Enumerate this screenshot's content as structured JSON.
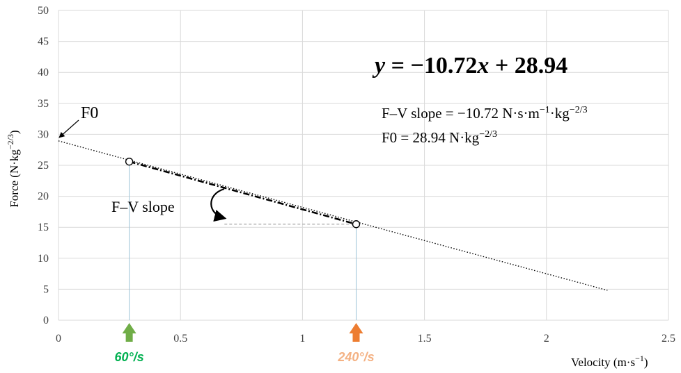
{
  "chart_data": {
    "type": "line",
    "ylabel_main": "Force (N·kg",
    "ylabel_exp": "−2/3",
    "ylabel_close": ")",
    "xlabel_main": "Velocity (m·s",
    "xlabel_exp": "−1",
    "xlabel_close": ")",
    "xlim": [
      0,
      2.5
    ],
    "ylim": [
      0,
      50
    ],
    "x_ticks": [
      "0",
      "0.5",
      "1",
      "1.5",
      "2",
      "2.5"
    ],
    "y_ticks": [
      "0",
      "5",
      "10",
      "15",
      "20",
      "25",
      "30",
      "35",
      "40",
      "45",
      "50"
    ],
    "grid": true,
    "trend": {
      "slope": -10.72,
      "intercept": 28.94,
      "x_range": [
        0,
        2.25
      ]
    },
    "points": [
      {
        "x": 0.29,
        "y": 25.6,
        "label": "60°/s"
      },
      {
        "x": 1.22,
        "y": 15.5,
        "label": "240°/s"
      }
    ],
    "equation": {
      "y": "y",
      "eq": " = −10.72",
      "x": "x",
      "rest": " + 28.94"
    },
    "annotations": {
      "f0_label": "F0",
      "fv_slope_label": "F–V slope",
      "slope_line_main": "F–V slope = −10.72 N·s·m",
      "slope_line_exp1": "−1",
      "slope_line_mid": "·kg",
      "slope_line_exp2": "−2/3",
      "f0_line_main": "F0 = 28.94 N·kg",
      "f0_line_exp": "−2/3"
    },
    "colors": {
      "grid": "#d9d9d9",
      "trend": "#000000",
      "guide": "#9dc3d8",
      "arrow_60": "#70ad47",
      "label_60": "#00b050",
      "arrow_240": "#ed7d31",
      "label_240": "#f4b183"
    }
  }
}
